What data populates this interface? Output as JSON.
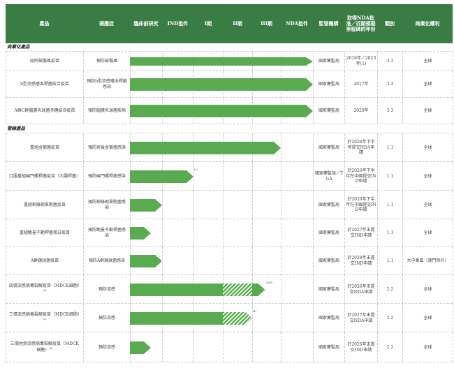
{
  "colors": {
    "header_bg": "#3a7d44",
    "bar": "#58ab4f",
    "hatch": "#ffffff"
  },
  "header": [
    "產品",
    "適應症",
    "臨床前研究",
    "IND批件",
    "I期",
    "II期",
    "III期",
    "NDA批件",
    "監管機構",
    "取得NDA批准／近期預期里程碑的年份",
    "類別",
    "商業化權利"
  ],
  "sections": [
    {
      "label": "商業化產品",
      "rows": [
        {
          "product": "吸附破傷風疫苗",
          "note": "",
          "indication": "預防破傷風",
          "regulator": "國家藥監局",
          "milestone": "2016年／2023年(1)",
          "class": "3.3",
          "rights": "全球",
          "progress": 6,
          "hatch": null,
          "bar_note": ""
        },
        {
          "product": "b型流感嗜血桿菌結合疫苗",
          "note": "",
          "indication": "預防b型流感嗜血桿菌感染",
          "regulator": "國家藥監局",
          "milestone": "2017年",
          "class": "3.3",
          "rights": "全球",
          "progress": 6,
          "hatch": null,
          "bar_note": ""
        },
        {
          "product": "A群C群腦膜炎球菌多糖結合疫苗",
          "note": "",
          "indication": "預防腦膜炎球菌疾病",
          "regulator": "國家藥監局",
          "milestone": "2020年",
          "class": "3.3",
          "rights": "全球",
          "progress": 6,
          "hatch": null,
          "bar_note": ""
        }
      ]
    },
    {
      "label": "管線產品",
      "rows": [
        {
          "product": "重組金葡菌疫苗",
          "note": "",
          "indication": "預防術後金葡菌感染",
          "regulator": "國家藥監局",
          "milestone": "於2026年下半年提交NDA申請",
          "class": "1.1",
          "rights": "全球",
          "progress": 5,
          "hatch": null,
          "bar_note": ""
        },
        {
          "product": "口服重組幽門螺桿菌疫苗（大腸桿菌）",
          "note": "",
          "indication": "預防幽門螺桿菌感染",
          "regulator": "國家藥監局／TGA",
          "milestone": "於2026年下半年在中國提交IND申請",
          "class": "1.1",
          "rights": "全球",
          "progress": 2,
          "hatch": null,
          "bar_note": "(2)"
        },
        {
          "product": "重組銅綠假單胞菌疫苗",
          "note": "",
          "indication": "預防銅綠假單胞菌感染",
          "regulator": "國家藥監局",
          "milestone": "於2026年下半年在中國提交IND申請",
          "class": "1.1",
          "rights": "全球",
          "progress": 1,
          "hatch": null,
          "bar_note": ""
        },
        {
          "product": "重組鮑曼不動桿菌蛋白疫苗",
          "note": "",
          "indication": "預防鮑曼不動桿菌感染",
          "regulator": "國家藥監局",
          "milestone": "於2027年末提交IND申請",
          "class": "1.1",
          "rights": "全球",
          "progress": 0.65,
          "hatch": null,
          "bar_note": ""
        },
        {
          "product": "A群鏈球菌疫苗",
          "note": "",
          "indication": "預防A群鏈球菌感染",
          "regulator": "國家藥監局",
          "milestone": "於2028年末提交IND申請",
          "class": "1.1",
          "rights": "大中華區（澳門除外）",
          "progress": 1,
          "hatch": null,
          "bar_note": ""
        },
        {
          "product": "四價流感病毒裂解疫苗（MDCK細胞）",
          "note": "(3)",
          "indication": "預防流感",
          "regulator": "國家藥監局",
          "milestone": "於2026年末提交NDA申請",
          "class": "2.2",
          "rights": "全球",
          "progress": 4.45,
          "hatch": [
            3,
            4
          ],
          "bar_note": "(3)(4)"
        },
        {
          "product": "三價流感病毒裂解疫苗（MDCK細胞）",
          "note": "(3)",
          "indication": "預防流感",
          "regulator": "國家藥監局",
          "milestone": "於2027年末提交NDA申請",
          "class": "2.2",
          "rights": "全球",
          "progress": 4,
          "hatch": [
            3,
            4
          ],
          "bar_note": "(4)"
        },
        {
          "product": "三價佐劑流感病毒裂解疫苗（MDCK細胞）",
          "note": "(3)",
          "indication": "預防流感",
          "regulator": "國家藥監局",
          "milestone": "於2026年末提交IND申請",
          "class": "2.2",
          "rights": "全球",
          "progress": 0.65,
          "hatch": null,
          "bar_note": ""
        }
      ]
    }
  ]
}
